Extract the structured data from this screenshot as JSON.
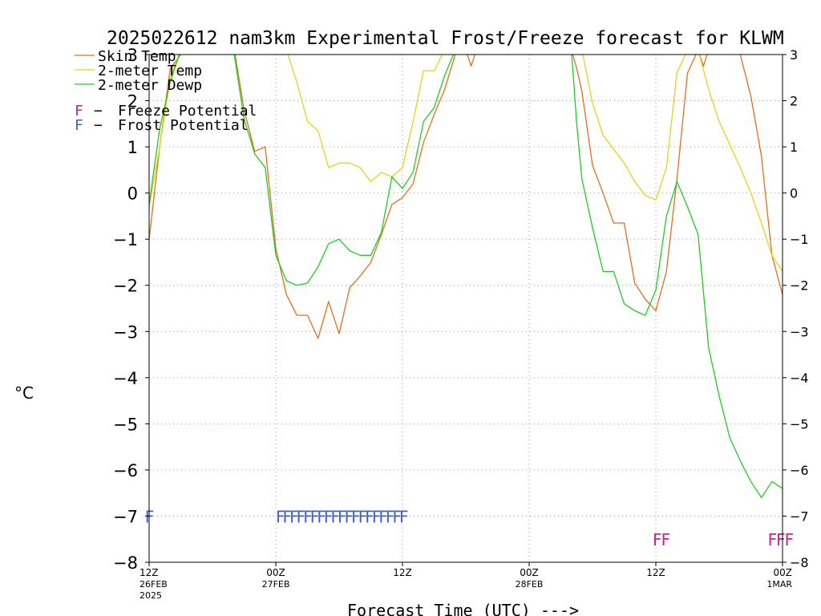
{
  "chart_data": {
    "type": "line",
    "title": "2025022612 nam3km Experimental Frost/Freeze forecast for KLWM",
    "xlabel": "Forecast Time (UTC) --->",
    "ylabel": "°C",
    "ylim": [
      -8,
      3
    ],
    "xlim_hours": [
      0,
      60
    ],
    "grid": true,
    "legend_position": "top-left",
    "y_ticks": [
      "3",
      "2",
      "1",
      "0",
      "−1",
      "−2",
      "−3",
      "−4",
      "−5",
      "−6",
      "−7",
      "−8"
    ],
    "x_ticks": [
      {
        "time": "12Z",
        "date": "26FEB",
        "year": "2025"
      },
      {
        "time": "00Z",
        "date": "27FEB",
        "year": ""
      },
      {
        "time": "12Z",
        "date": "",
        "year": ""
      },
      {
        "time": "00Z",
        "date": "28FEB",
        "year": ""
      },
      {
        "time": "12Z",
        "date": "",
        "year": ""
      },
      {
        "time": "00Z",
        "date": "1MAR",
        "year": ""
      }
    ],
    "series": [
      {
        "name": "Skin Temp",
        "color": "#e07020",
        "points": [
          [
            0,
            -1.0
          ],
          [
            1,
            1.0
          ],
          [
            2,
            2.7
          ],
          [
            3,
            3.0
          ],
          [
            4,
            3.2
          ],
          [
            8,
            3.2
          ],
          [
            9,
            1.8
          ],
          [
            10,
            0.9
          ],
          [
            11,
            1.0
          ],
          [
            12,
            -1.2
          ],
          [
            13,
            -2.2
          ],
          [
            14,
            -2.65
          ],
          [
            15,
            -2.65
          ],
          [
            16,
            -3.15
          ],
          [
            17,
            -2.35
          ],
          [
            18,
            -3.05
          ],
          [
            19,
            -2.05
          ],
          [
            20,
            -1.8
          ],
          [
            21,
            -1.5
          ],
          [
            22,
            -0.9
          ],
          [
            23,
            -0.25
          ],
          [
            24,
            -0.1
          ],
          [
            25,
            0.2
          ],
          [
            26,
            1.1
          ],
          [
            27,
            1.7
          ],
          [
            28,
            2.25
          ],
          [
            29,
            3.0
          ],
          [
            30,
            3.1
          ],
          [
            30.5,
            2.75
          ],
          [
            31,
            3.1
          ],
          [
            40,
            3.1
          ],
          [
            40.5,
            2.7
          ],
          [
            41,
            2.2
          ],
          [
            42,
            0.6
          ],
          [
            43,
            0.0
          ],
          [
            44,
            -0.65
          ],
          [
            45,
            -0.65
          ],
          [
            46,
            -1.95
          ],
          [
            47,
            -2.3
          ],
          [
            48,
            -2.55
          ],
          [
            49,
            -1.7
          ],
          [
            50,
            0.3
          ],
          [
            51,
            2.6
          ],
          [
            52,
            3.1
          ],
          [
            52.5,
            2.75
          ],
          [
            53,
            3.1
          ],
          [
            55,
            3.1
          ],
          [
            56,
            3.0
          ],
          [
            57,
            2.1
          ],
          [
            58,
            0.8
          ],
          [
            59,
            -1.35
          ],
          [
            60,
            -2.2
          ],
          [
            61,
            -2.65
          ]
        ]
      },
      {
        "name": "2-meter Temp",
        "color": "#e6d21e",
        "points": [
          [
            0,
            -0.3
          ],
          [
            1,
            1.0
          ],
          [
            2,
            2.5
          ],
          [
            3,
            3.1
          ],
          [
            13,
            3.1
          ],
          [
            14,
            2.4
          ],
          [
            15,
            1.55
          ],
          [
            16,
            1.35
          ],
          [
            17,
            0.55
          ],
          [
            18,
            0.65
          ],
          [
            19,
            0.65
          ],
          [
            20,
            0.55
          ],
          [
            21,
            0.25
          ],
          [
            22,
            0.45
          ],
          [
            23,
            0.35
          ],
          [
            24,
            0.55
          ],
          [
            25,
            1.55
          ],
          [
            26,
            2.65
          ],
          [
            27,
            2.65
          ],
          [
            28,
            3.1
          ],
          [
            41,
            3.1
          ],
          [
            42,
            1.95
          ],
          [
            43,
            1.25
          ],
          [
            44,
            0.95
          ],
          [
            45,
            0.65
          ],
          [
            46,
            0.25
          ],
          [
            47,
            -0.05
          ],
          [
            48,
            -0.15
          ],
          [
            49,
            0.55
          ],
          [
            50,
            2.6
          ],
          [
            51,
            3.1
          ],
          [
            52,
            3.1
          ],
          [
            53,
            2.25
          ],
          [
            54,
            1.55
          ],
          [
            55,
            1.05
          ],
          [
            56,
            0.55
          ],
          [
            57,
            0.0
          ],
          [
            58,
            -0.65
          ],
          [
            59,
            -1.35
          ],
          [
            60,
            -1.7
          ]
        ]
      },
      {
        "name": "2-meter Dewp",
        "color": "#22cc22",
        "points": [
          [
            0,
            -0.25
          ],
          [
            1,
            1.4
          ],
          [
            2,
            2.4
          ],
          [
            3,
            3.1
          ],
          [
            8,
            3.1
          ],
          [
            9,
            1.6
          ],
          [
            10,
            0.85
          ],
          [
            11,
            0.55
          ],
          [
            12,
            -1.35
          ],
          [
            13,
            -1.9
          ],
          [
            14,
            -2.0
          ],
          [
            15,
            -1.95
          ],
          [
            16,
            -1.6
          ],
          [
            17,
            -1.1
          ],
          [
            18,
            -1.0
          ],
          [
            19,
            -1.25
          ],
          [
            20,
            -1.35
          ],
          [
            21,
            -1.35
          ],
          [
            22,
            -0.85
          ],
          [
            23,
            0.35
          ],
          [
            24,
            0.1
          ],
          [
            25,
            0.45
          ],
          [
            26,
            1.55
          ],
          [
            27,
            1.85
          ],
          [
            28,
            2.55
          ],
          [
            29,
            3.1
          ],
          [
            40,
            3.1
          ],
          [
            40.5,
            1.5
          ],
          [
            41,
            0.3
          ],
          [
            42,
            -0.75
          ],
          [
            43,
            -1.7
          ],
          [
            44,
            -1.7
          ],
          [
            45,
            -2.4
          ],
          [
            46,
            -2.55
          ],
          [
            47,
            -2.65
          ],
          [
            48,
            -2.1
          ],
          [
            49,
            -0.5
          ],
          [
            50,
            0.25
          ],
          [
            51,
            -0.3
          ],
          [
            52,
            -0.9
          ],
          [
            53,
            -3.35
          ],
          [
            54,
            -4.4
          ],
          [
            55,
            -5.3
          ],
          [
            56,
            -5.8
          ],
          [
            57,
            -6.25
          ],
          [
            58,
            -6.6
          ],
          [
            59,
            -6.25
          ],
          [
            60,
            -6.4
          ]
        ]
      }
    ],
    "flags": {
      "frost": {
        "label": "Frost Potential",
        "color": "#4060c8",
        "y": -7.0,
        "hours": [
          -0.4,
          12.0,
          12.65,
          13.3,
          13.95,
          14.6,
          15.25,
          15.9,
          16.55,
          17.2,
          17.85,
          18.5,
          19.15,
          19.8,
          20.45,
          21.1,
          21.75,
          22.4,
          23.05,
          23.7
        ]
      },
      "freeze": {
        "label": "Freeze Potential",
        "color": "#cc1f9c",
        "y": -7.5,
        "hours": [
          47.7,
          48.5,
          58.6,
          59.4,
          60.2
        ]
      }
    },
    "legend": [
      {
        "label": "Skin Temp",
        "color": "#e07020"
      },
      {
        "label": "2-meter Temp",
        "color": "#e6d21e"
      },
      {
        "label": "2-meter Dewp",
        "color": "#22cc22"
      }
    ],
    "flag_legend": [
      {
        "letter": "F",
        "text": "Freeze Potential",
        "color": "#cc1f9c"
      },
      {
        "letter": "F",
        "text": "Frost Potential",
        "color": "#4060c8"
      }
    ],
    "flag_letter": "F",
    "flag_dash": "−"
  }
}
